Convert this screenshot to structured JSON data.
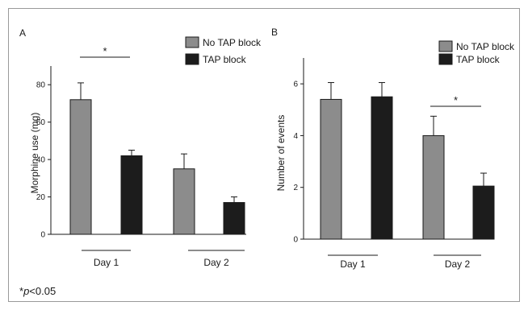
{
  "colors": {
    "no_tap": "#8c8c8c",
    "tap": "#1c1c1c",
    "axis": "#1a1a1a",
    "frame": "#9a9a9a"
  },
  "chart_data": [
    {
      "type": "bar",
      "panel_label": "A",
      "categories": [
        "Day 1",
        "Day 2"
      ],
      "series": [
        {
          "name": "No TAP block",
          "values": [
            72,
            35
          ],
          "errors": [
            9,
            8
          ],
          "color": "#8c8c8c"
        },
        {
          "name": "TAP block",
          "values": [
            42,
            17
          ],
          "errors": [
            3,
            3
          ],
          "color": "#1c1c1c"
        }
      ],
      "ylabel": "Morphine use  (mg)",
      "ylim": [
        0,
        90
      ],
      "yticks": [
        "0",
        "20",
        "40",
        "60",
        "80"
      ],
      "ytick_values": [
        0,
        20,
        40,
        60,
        80
      ],
      "significance": [
        {
          "category": "Day 1",
          "label": "*"
        }
      ],
      "legend_position": "top-right",
      "grid": false
    },
    {
      "type": "bar",
      "panel_label": "B",
      "categories": [
        "Day 1",
        "Day 2"
      ],
      "series": [
        {
          "name": "No TAP block",
          "values": [
            5.4,
            4.0
          ],
          "errors": [
            0.65,
            0.75
          ],
          "color": "#8c8c8c"
        },
        {
          "name": "TAP block",
          "values": [
            5.5,
            2.05
          ],
          "errors": [
            0.55,
            0.5
          ],
          "color": "#1c1c1c"
        }
      ],
      "ylabel": "Number  of  events",
      "ylim": [
        0,
        7
      ],
      "yticks": [
        "0",
        "2",
        "4",
        "6"
      ],
      "ytick_values": [
        0,
        2,
        4,
        6
      ],
      "significance": [
        {
          "category": "Day 2",
          "label": "*"
        }
      ],
      "legend_position": "top-right",
      "grid": false
    }
  ],
  "footnote": {
    "star": "*",
    "p": "p",
    "rest": "<0.05"
  }
}
